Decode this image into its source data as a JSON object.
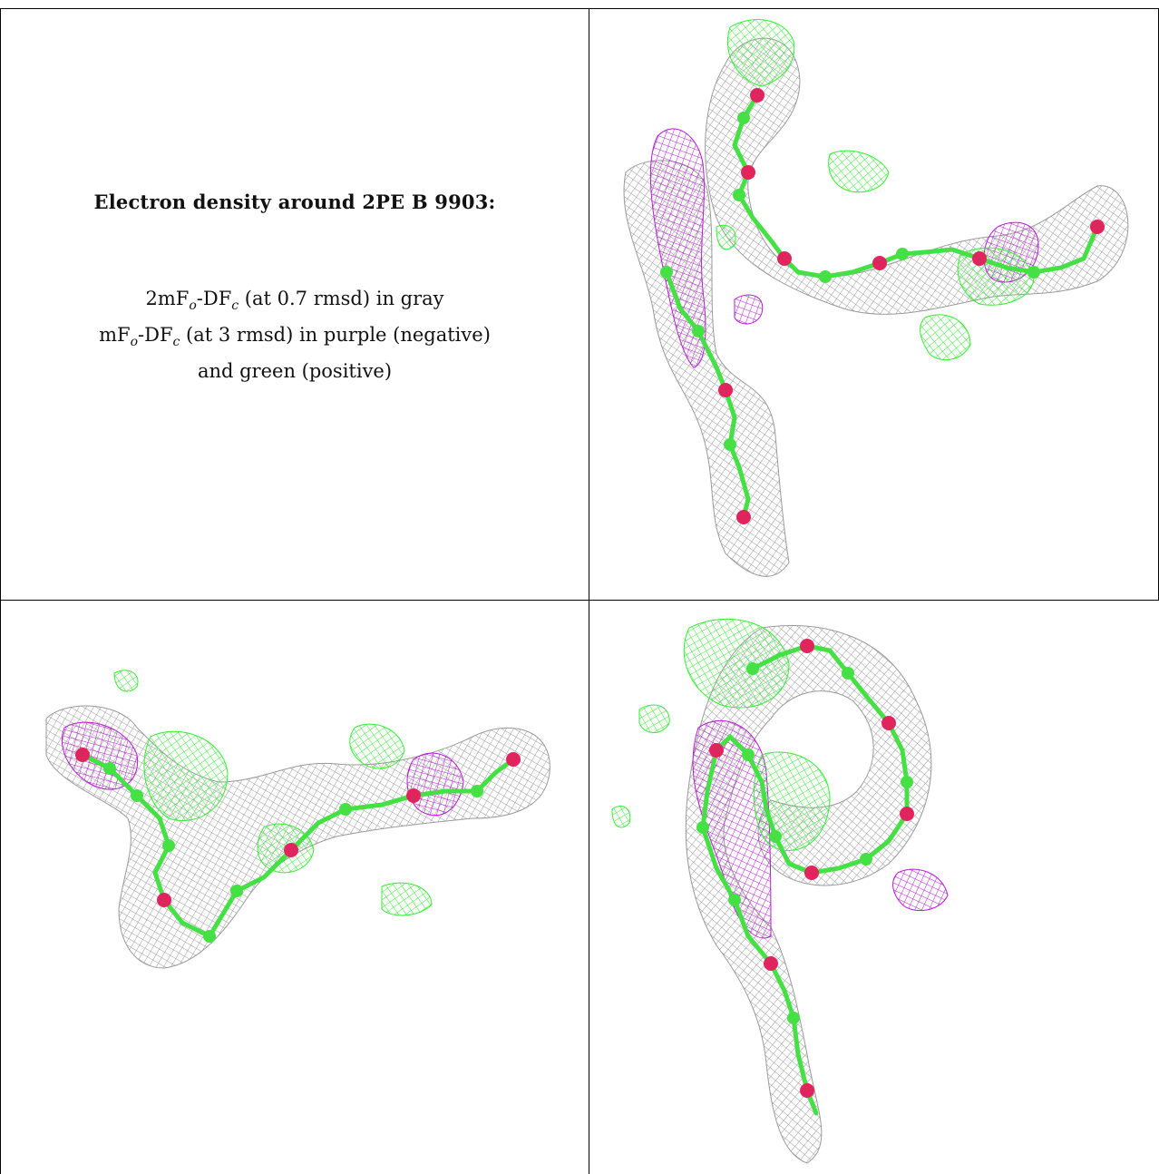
{
  "caption": {
    "heading": "Electron density around 2PE B 9903:",
    "line1_prefix": "2mF",
    "line1_sub1": "o",
    "line1_mid": "-DF",
    "line1_sub2": "c",
    "line1_suffix": " (at 0.7 rmsd) in gray",
    "line2_prefix": "mF",
    "line2_sub1": "o",
    "line2_mid": "-DF",
    "line2_sub2": "c",
    "line2_suffix": " (at 3 rmsd) in purple (negative)",
    "line3": "and green (positive)"
  },
  "colors": {
    "mesh_gray": "#9a9a9a",
    "mesh_purple": "#b51bd1",
    "mesh_green": "#33ee33",
    "atom_carbon": "#44e044",
    "atom_oxygen": "#e0245e",
    "grid_lines": "#000000"
  },
  "panels": [
    {
      "view": "top-right"
    },
    {
      "view": "bottom-left"
    },
    {
      "view": "bottom-right"
    }
  ]
}
